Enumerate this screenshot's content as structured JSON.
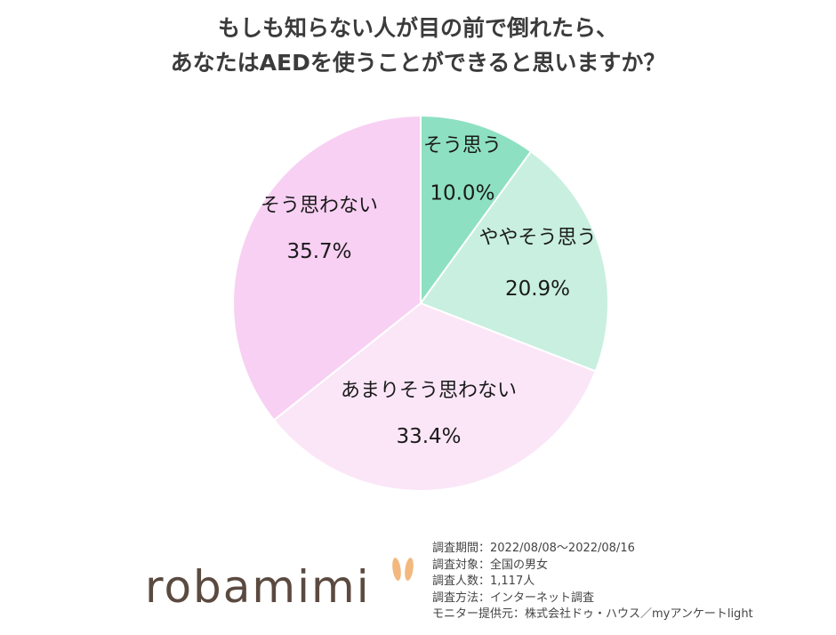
{
  "title": {
    "line1": "もしも知らない人が目の前で倒れたら、",
    "line2": "あなたはAEDを使うことができると思いますか？"
  },
  "chart_data": {
    "type": "pie",
    "slices": [
      {
        "label": "そう思う",
        "value": 10.0,
        "value_text": "10.0%",
        "color": "#8ee0c2"
      },
      {
        "label": "ややそう思う",
        "value": 20.9,
        "value_text": "20.9%",
        "color": "#c8efe0"
      },
      {
        "label": "あまりそう思わない",
        "value": 33.4,
        "value_text": "33.4%",
        "color": "#fbe6f8"
      },
      {
        "label": "そう思わない",
        "value": 35.7,
        "value_text": "35.7%",
        "color": "#f8d0f3"
      }
    ],
    "start": "12 o'clock",
    "direction": "clockwise"
  },
  "logo": {
    "text": "robamimi",
    "ear_color": "#f2b87e"
  },
  "survey_notes": [
    "調査期間：2022/08/08～2022/08/16",
    "調査対象：全国の男女",
    "調査人数：1,117人",
    "調査方法：インターネット調査",
    "モニター提供元：株式会社ドゥ・ハウス／myアンケートlight"
  ]
}
